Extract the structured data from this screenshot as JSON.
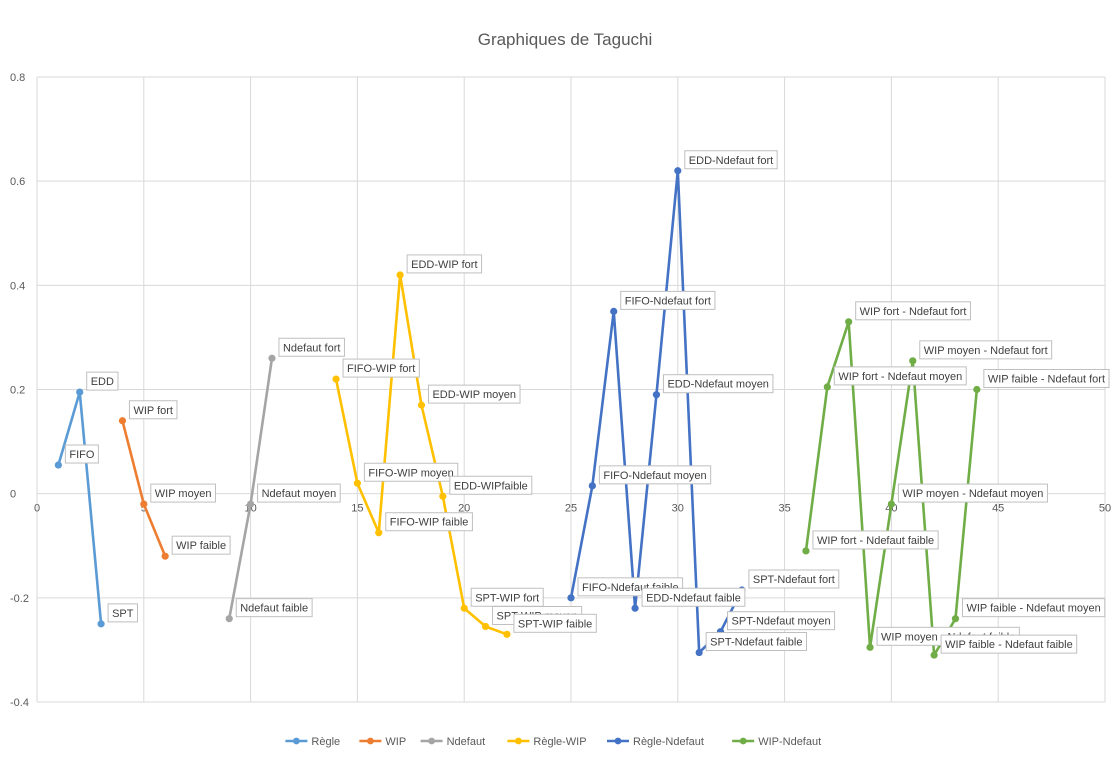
{
  "chart_data": {
    "type": "line",
    "title": "Graphiques de Taguchi",
    "xlabel": "",
    "ylabel": "",
    "xlim": [
      0,
      50
    ],
    "ylim": [
      -0.4,
      0.8
    ],
    "xticks": [
      0,
      5,
      10,
      15,
      20,
      25,
      30,
      35,
      40,
      45,
      50
    ],
    "yticks": [
      -0.4,
      -0.2,
      0,
      0.2,
      0.4,
      0.6,
      0.8
    ],
    "grid": true,
    "legend_position": "bottom",
    "series": [
      {
        "name": "Règle",
        "color": "#5B9BD5",
        "points": [
          {
            "x": 1,
            "y": 0.055,
            "label": "FIFO"
          },
          {
            "x": 2,
            "y": 0.195,
            "label": "EDD"
          },
          {
            "x": 3,
            "y": -0.25,
            "label": "SPT"
          }
        ]
      },
      {
        "name": "WIP",
        "color": "#ED7D31",
        "points": [
          {
            "x": 4,
            "y": 0.14,
            "label": "WIP fort"
          },
          {
            "x": 5,
            "y": -0.02,
            "label": "WIP moyen"
          },
          {
            "x": 6,
            "y": -0.12,
            "label": "WIP faible"
          }
        ]
      },
      {
        "name": "Ndefaut",
        "color": "#A5A5A5",
        "points": [
          {
            "x": 9,
            "y": -0.24,
            "label": "Ndefaut faible"
          },
          {
            "x": 10,
            "y": -0.02,
            "label": "Ndefaut moyen"
          },
          {
            "x": 11,
            "y": 0.26,
            "label": "Ndefaut fort"
          }
        ]
      },
      {
        "name": "Règle-WIP",
        "color": "#FFC000",
        "points": [
          {
            "x": 14,
            "y": 0.22,
            "label": "FIFO-WIP fort"
          },
          {
            "x": 15,
            "y": 0.02,
            "label": "FIFO-WIP moyen"
          },
          {
            "x": 16,
            "y": -0.075,
            "label": "FIFO-WIP faible"
          },
          {
            "x": 17,
            "y": 0.42,
            "label": "EDD-WIP fort"
          },
          {
            "x": 18,
            "y": 0.17,
            "label": "EDD-WIP moyen"
          },
          {
            "x": 19,
            "y": -0.005,
            "label": "EDD-WIPfaible"
          },
          {
            "x": 20,
            "y": -0.22,
            "label": "SPT-WIP fort"
          },
          {
            "x": 21,
            "y": -0.255,
            "label": "SPT-WIP moyen"
          },
          {
            "x": 22,
            "y": -0.27,
            "label": "SPT-WIP faible"
          }
        ]
      },
      {
        "name": "Règle-Ndefaut",
        "color": "#4472C4",
        "points": [
          {
            "x": 25,
            "y": -0.2,
            "label": "FIFO-Ndefaut faible"
          },
          {
            "x": 26,
            "y": 0.015,
            "label": "FIFO-Ndefaut moyen"
          },
          {
            "x": 27,
            "y": 0.35,
            "label": "FIFO-Ndefaut fort"
          },
          {
            "x": 28,
            "y": -0.22,
            "label": "EDD-Ndefaut faible"
          },
          {
            "x": 29,
            "y": 0.19,
            "label": "EDD-Ndefaut moyen"
          },
          {
            "x": 30,
            "y": 0.62,
            "label": "EDD-Ndefaut fort"
          },
          {
            "x": 31,
            "y": -0.305,
            "label": "SPT-Ndefaut faible"
          },
          {
            "x": 32,
            "y": -0.265,
            "label": "SPT-Ndefaut moyen"
          },
          {
            "x": 33,
            "y": -0.185,
            "label": "SPT-Ndefaut fort"
          }
        ]
      },
      {
        "name": "WIP-Ndefaut",
        "color": "#70AD47",
        "points": [
          {
            "x": 36,
            "y": -0.11,
            "label": "WIP fort - Ndefaut faible"
          },
          {
            "x": 37,
            "y": 0.205,
            "label": "WIP fort - Ndefaut moyen"
          },
          {
            "x": 38,
            "y": 0.33,
            "label": "WIP fort - Ndefaut fort"
          },
          {
            "x": 39,
            "y": -0.295,
            "label": "WIP moyen - Ndefaut faible"
          },
          {
            "x": 40,
            "y": -0.02,
            "label": "WIP moyen - Ndefaut moyen"
          },
          {
            "x": 41,
            "y": 0.255,
            "label": "WIP moyen - Ndefaut fort"
          },
          {
            "x": 42,
            "y": -0.31,
            "label": "WIP faible - Ndefaut faible"
          },
          {
            "x": 43,
            "y": -0.24,
            "label": "WIP faible - Ndefaut moyen"
          },
          {
            "x": 44,
            "y": 0.2,
            "label": "WIP faible - Ndefaut fort"
          }
        ]
      }
    ]
  }
}
